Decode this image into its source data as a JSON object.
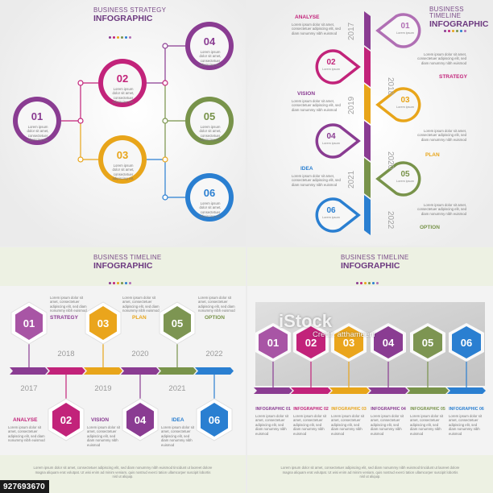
{
  "colors": {
    "purple": "#8a3c92",
    "magenta": "#c2237a",
    "olive": "#78934a",
    "yellow": "#e8a51a",
    "blue": "#2a7fd1",
    "lilac": "#b06fb4",
    "title": "#6d3a80"
  },
  "panel1": {
    "title_small": "BUSINESS STRATEGY",
    "title_big": "INFOGRAPHIC",
    "nodes": [
      {
        "num": "01",
        "text": "Lorem ipsum dolor sit amet, consectetuer adipiscing elit."
      },
      {
        "num": "02",
        "text": "Lorem ipsum dolor sit amet, consectetuer adipiscing elit."
      },
      {
        "num": "03",
        "text": "Lorem ipsum dolor sit amet, consectetuer adipiscing elit."
      },
      {
        "num": "04",
        "text": "Lorem ipsum dolor sit amet, consectetuer adipiscing elit."
      },
      {
        "num": "05",
        "text": "Lorem ipsum dolor sit amet, consectetuer adipiscing elit."
      },
      {
        "num": "06",
        "text": "Lorem ipsum dolor sit amet, consectetuer adipiscing elit."
      }
    ]
  },
  "panel2": {
    "title_small": "BUSINESS TIMELINE",
    "title_big": "INFOGRAPHIC",
    "years": [
      "2017",
      "2018",
      "2019",
      "2020",
      "2021",
      "2022"
    ],
    "pins": [
      "01",
      "02",
      "03",
      "04",
      "05",
      "06"
    ],
    "labels": [
      "ANALYSE",
      "STRATEGY",
      "VISION",
      "PLAN",
      "IDEA",
      "OPTION"
    ],
    "body": "Lorem ipsum dolor sit amet, consectetuer adipiscing elit, sed diam nonummy nibh euismod"
  },
  "panel3": {
    "title_small": "BUSINESS TIMELINE",
    "title_big": "INFOGRAPHIC",
    "hexes": [
      "01",
      "02",
      "03",
      "04",
      "05",
      "06"
    ],
    "labels": [
      "ANALYSE",
      "STRATEGY",
      "VISION",
      "PLAN",
      "IDEA",
      "OPTION"
    ],
    "years_top": [
      "2018",
      "2020",
      "2022"
    ],
    "years_bottom": [
      "2017",
      "2019",
      "2021"
    ],
    "body": "Lorem ipsum dolor sit amet, consectetuer adipiscing elit, sed diam nonummy nibh euismod",
    "footer": "Lorem ipsum dolor sit amet, consectetuer adipiscing elit, sed diam nonummy nibh euismod tincidunt ut laoreet dolore magna aliquam erat volutpat. Ut wisi enim ad minim veniam, quis nostrud exerci tation ullamcorper suscipit lobortis nisl ut aliquip."
  },
  "panel4": {
    "title_small": "BUSINESS TIMELINE",
    "title_big": "INFOGRAPHIC",
    "hexes": [
      "01",
      "02",
      "03",
      "04",
      "05",
      "06"
    ],
    "labels": [
      "INFOGRAPHIC 01",
      "INFOGRAPHIC 02",
      "INFOGRAPHIC 03",
      "INFOGRAPHIC 04",
      "INFOGRAPHIC 05",
      "INFOGRAPHIC 06"
    ],
    "body": "Lorem ipsum dolor sit amet, consectetuer adipiscing elit, sed diam nonummy nibh euismod",
    "footer": "Lorem ipsum dolor sit amet, consectetuer adipiscing elit, sed diam nonummy nibh euismod tincidunt ut laoreet dolore magna aliquam erat volutpat. Ut wisi enim ad minim veniam, quis nostrud exerci tation ullamcorper suscipit lobortis nisl ut aliquip."
  },
  "watermark": {
    "logo": "iStock",
    "credit": "Credit: atthameeni",
    "image_id": "927693670"
  }
}
